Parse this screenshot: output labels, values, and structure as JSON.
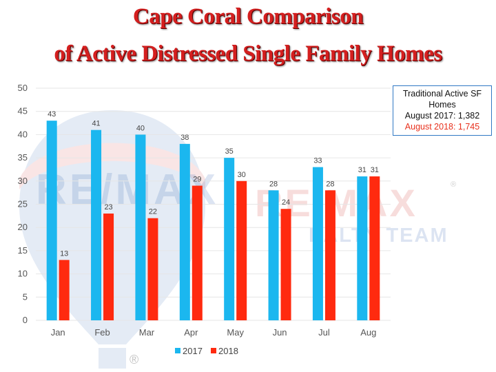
{
  "title": {
    "line1": "Cape Coral Comparison",
    "line2": "of Active Distressed Single Family Homes"
  },
  "info_box": {
    "heading": "Traditional Active SF Homes",
    "line_2017": "August 2017: 1,382",
    "line_2018": "August 2018: 1,745"
  },
  "watermark": {
    "logo_text": "RE/MAX",
    "team_text": "EALTY TEAM",
    "registered": "®"
  },
  "colors": {
    "series_2017": "#1bb7ef",
    "series_2018": "#ff2a0f",
    "title": "#d41f1f",
    "grid": "#e6e6e6"
  },
  "chart_data": {
    "type": "bar",
    "categories": [
      "Jan",
      "Feb",
      "Mar",
      "Apr",
      "May",
      "Jun",
      "Jul",
      "Aug"
    ],
    "series": [
      {
        "name": "2017",
        "values": [
          43,
          41,
          40,
          38,
          35,
          28,
          33,
          31
        ]
      },
      {
        "name": "2018",
        "values": [
          13,
          23,
          22,
          29,
          30,
          24,
          28,
          31
        ]
      }
    ],
    "ylim": [
      0,
      50
    ],
    "yticks": [
      0,
      5,
      10,
      15,
      20,
      25,
      30,
      35,
      40,
      45,
      50
    ],
    "grid": true,
    "legend": "bottom",
    "data_labels": true
  }
}
